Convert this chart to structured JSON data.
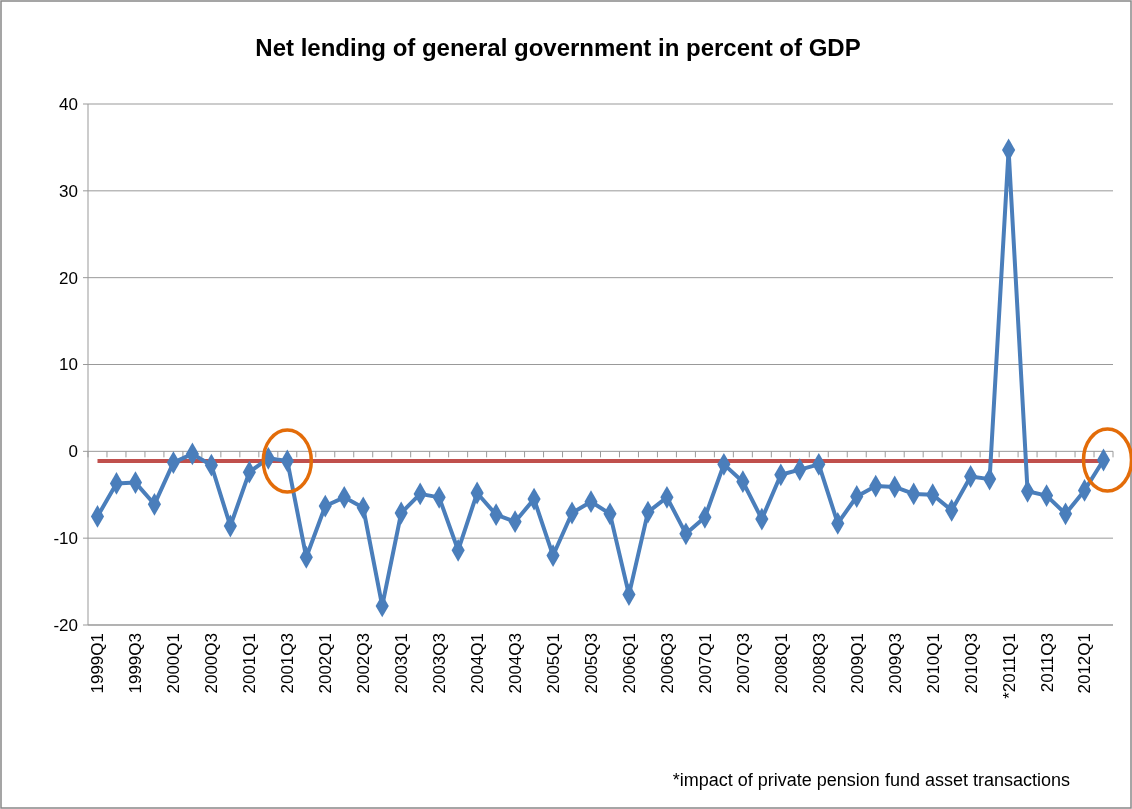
{
  "chart_data": {
    "type": "line",
    "title": "Net lending of general government in percent of GDP",
    "categories": [
      "1999Q1",
      null,
      "1999Q3",
      null,
      "2000Q1",
      null,
      "2000Q3",
      null,
      "2001Q1",
      null,
      "2001Q3",
      null,
      "2002Q1",
      null,
      "2002Q3",
      null,
      "2003Q1",
      null,
      "2003Q3",
      null,
      "2004Q1",
      null,
      "2004Q3",
      null,
      "2005Q1",
      null,
      "2005Q3",
      null,
      "2006Q1",
      null,
      "2006Q3",
      null,
      "2007Q1",
      null,
      "2007Q3",
      null,
      "2008Q1",
      null,
      "2008Q3",
      null,
      "2009Q1",
      null,
      "2009Q3",
      null,
      "2010Q1",
      null,
      "2010Q3",
      null,
      "*2011Q1",
      null,
      "2011Q3",
      null,
      "2012Q1",
      null
    ],
    "series": [
      {
        "color": "#4a7ebb",
        "values": [
          -7.5,
          -3.7,
          -3.6,
          -6.1,
          -1.3,
          -0.3,
          -1.6,
          -8.6,
          -2.4,
          -0.8,
          -1.1,
          -12.2,
          -6.3,
          -5.3,
          -6.5,
          -17.8,
          -7.1,
          -4.9,
          -5.3,
          -11.4,
          -4.8,
          -7.3,
          -8.1,
          -5.5,
          -12.0,
          -7.1,
          -5.8,
          -7.2,
          -16.5,
          -7.0,
          -5.3,
          -9.5,
          -7.6,
          -1.5,
          -3.5,
          -7.8,
          -2.7,
          -2.1,
          -1.5,
          -8.3,
          -5.2,
          -4.0,
          -4.1,
          -4.9,
          -5.0,
          -6.8,
          -2.9,
          -3.2,
          34.7,
          -4.6,
          -5.1,
          -7.2,
          -4.5,
          -1.0
        ]
      }
    ],
    "ylim": [
      -20,
      40
    ],
    "yticks": [
      -20,
      -10,
      0,
      10,
      20,
      30,
      40
    ],
    "grid": "y",
    "marker": "diamond",
    "line_style": "solid",
    "ref_lines": [
      {
        "axis": "y",
        "value": -1.1,
        "color": "#c0504d"
      }
    ],
    "annotations": [
      "*impact of private pension fund asset transactions"
    ]
  }
}
